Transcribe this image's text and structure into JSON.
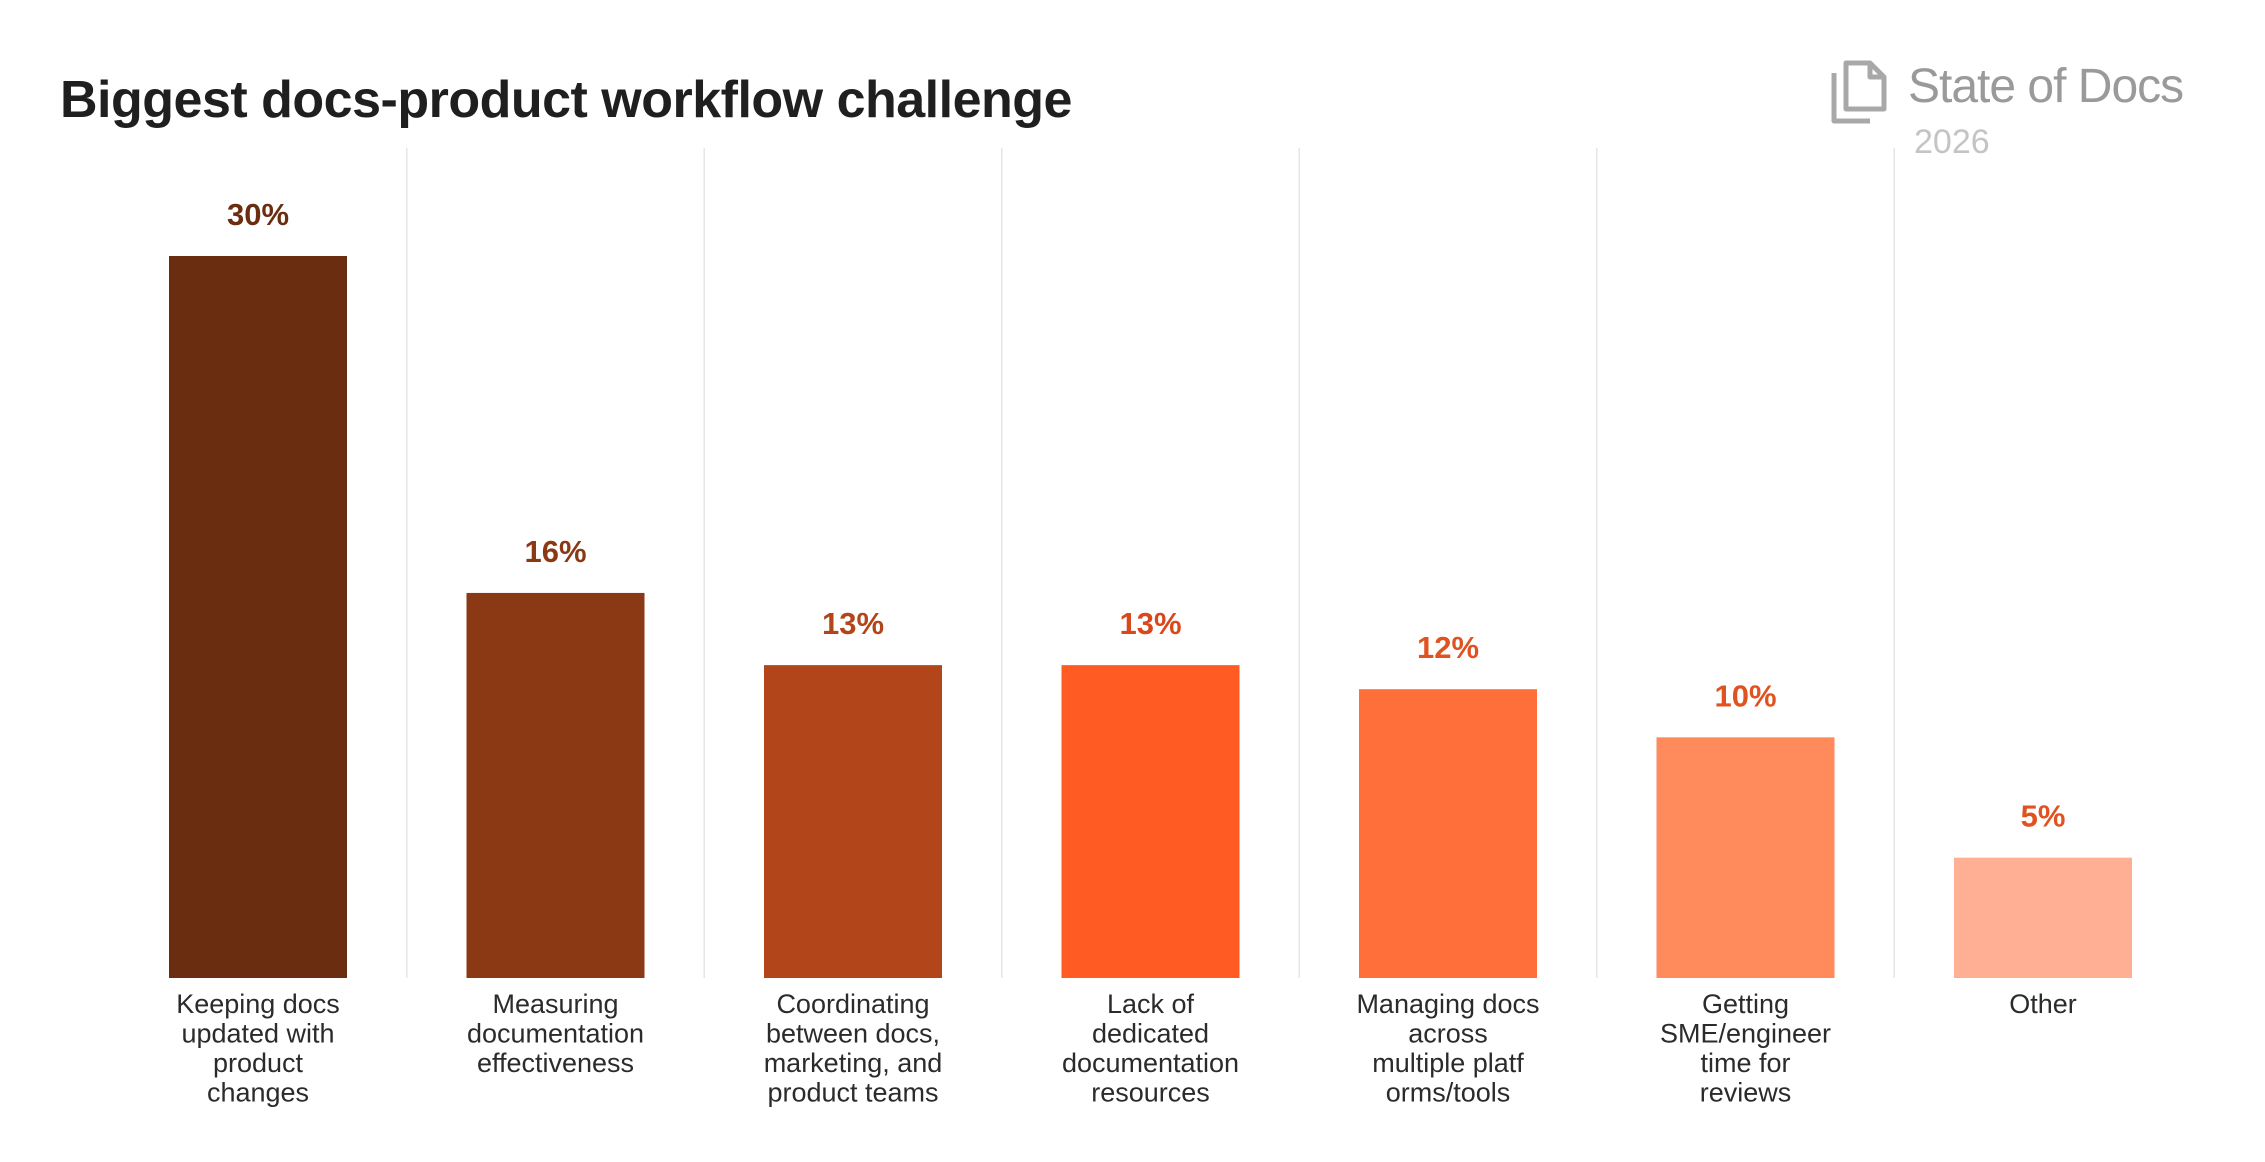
{
  "title": "Biggest docs-product workflow challenge",
  "brand": {
    "name": "State of Docs",
    "year": "2026",
    "logo_icon": "docs-pages-icon"
  },
  "colors": {
    "title": "#1f1f1f",
    "gridline": "#e6e6e6",
    "brand": "#9a9a9a"
  },
  "chart_data": {
    "type": "bar",
    "title": "Biggest docs-product workflow challenge",
    "xlabel": "",
    "ylabel": "",
    "ylim": [
      0,
      30
    ],
    "grid": "vertical separators",
    "value_format": "percent",
    "categories": [
      [
        "Keeping docs",
        "updated with",
        "product",
        "changes"
      ],
      [
        "Measuring",
        "documentation",
        "effectiveness"
      ],
      [
        "Coordinating",
        "between docs,",
        "marketing, and",
        "product teams"
      ],
      [
        "Lack of",
        "dedicated",
        "documentation",
        "resources"
      ],
      [
        "Managing docs",
        "across",
        "multiple platf",
        "orms/tools"
      ],
      [
        "Getting",
        "SME/engineer",
        "time for",
        "reviews"
      ],
      [
        "Other"
      ]
    ],
    "values": [
      30,
      16,
      13,
      13,
      12,
      10,
      5
    ],
    "value_labels": [
      "30%",
      "16%",
      "13%",
      "13%",
      "12%",
      "10%",
      "5%"
    ],
    "bar_colors": [
      "#6b2d10",
      "#8b3914",
      "#b3451a",
      "#ff5b23",
      "#ff6f3a",
      "#ff8a5c",
      "#ffb094"
    ],
    "label_colors": [
      "#6b2d10",
      "#8b3914",
      "#b3451a",
      "#d9481a",
      "#e0521f",
      "#e0521f",
      "#e0521f"
    ]
  }
}
